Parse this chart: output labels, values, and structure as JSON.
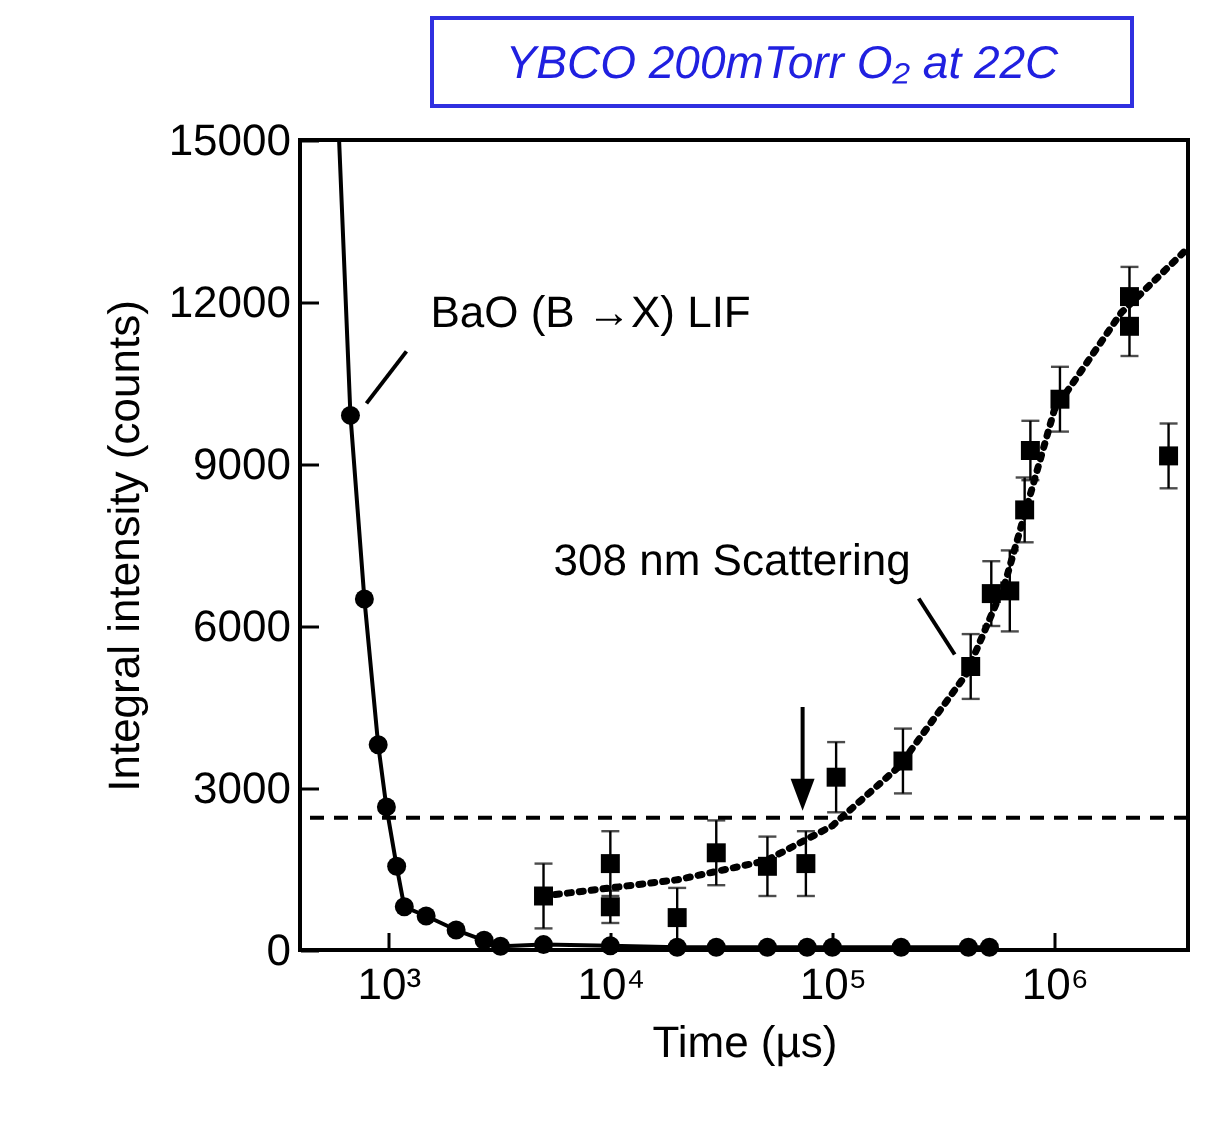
{
  "chart_data": {
    "type": "scatter",
    "title": "YBCO 200mTorr O₂ at 22C",
    "xlabel": "Time (µs)",
    "ylabel": "Integral intensity (counts)",
    "log": "x",
    "xlim": [
      400,
      4000000
    ],
    "xticks": [
      {
        "value": 1000,
        "label": "10³"
      },
      {
        "value": 10000,
        "label": "10⁴"
      },
      {
        "value": 100000,
        "label": "10⁵"
      },
      {
        "value": 1000000,
        "label": "10⁶"
      }
    ],
    "ylim": [
      0,
      15000
    ],
    "yticks": [
      0,
      3000,
      6000,
      9000,
      12000,
      15000
    ],
    "series": [
      {
        "type": "line",
        "color": "#000000",
        "line_style": "solid",
        "marker": "none",
        "x": [
          600,
          675,
          780,
          900,
          980,
          1090,
          1180,
          1480,
          2020,
          2700,
          3200,
          5000,
          10000,
          20000,
          30000,
          51000,
          77000,
          100000,
          204000,
          410000,
          510000
        ],
        "values": [
          15000,
          9900,
          6500,
          3800,
          2650,
          1550,
          800,
          630,
          370,
          180,
          70,
          100,
          80,
          50,
          50,
          50,
          50,
          50,
          50,
          50,
          50
        ]
      },
      {
        "type": "line",
        "color": "#000000",
        "line_style": "dotted",
        "marker": "none",
        "x": [
          5000,
          10000,
          20000,
          50000,
          100000,
          200000,
          400000,
          600000,
          800000,
          1000000,
          2000000,
          4000000
        ],
        "values": [
          1000,
          1150,
          1300,
          1650,
          2300,
          3400,
          5100,
          6800,
          8600,
          10000,
          11800,
          13000
        ]
      },
      {
        "color": "#000000",
        "marker": "circle",
        "x": [
          675,
          780,
          900,
          980,
          1090,
          1180,
          1480,
          2020,
          2700,
          3200,
          5000,
          10000,
          20000,
          30000,
          51000,
          77000,
          100000,
          204000,
          410000,
          510000
        ],
        "values": [
          9900,
          6500,
          3800,
          2650,
          1550,
          800,
          630,
          370,
          180,
          70,
          100,
          80,
          50,
          50,
          50,
          50,
          50,
          50,
          50,
          50
        ]
      },
      {
        "color": "#000000",
        "marker": "square",
        "x": [
          5000,
          10000,
          10000,
          20000,
          30000,
          51000,
          76000,
          104000,
          208000,
          420000,
          520000,
          630000,
          735000,
          780000,
          1060000,
          2180000,
          2180000,
          3270000
        ],
        "values": [
          1000,
          1600,
          800,
          600,
          1800,
          1550,
          1600,
          3200,
          3500,
          5250,
          6600,
          6650,
          8150,
          9250,
          10200,
          11550,
          12100,
          9150
        ],
        "errors": [
          600,
          600,
          300,
          550,
          600,
          550,
          600,
          650,
          600,
          600,
          600,
          750,
          600,
          550,
          600,
          550,
          550,
          600
        ]
      }
    ],
    "ref_lines": [
      {
        "axis": "y",
        "value": 2450,
        "color": "#000000",
        "line_style": "dashed"
      }
    ],
    "annotations": [
      {
        "text": "BaO (B →X) LIF",
        "x": 675,
        "y": 9900
      },
      {
        "text": "308 nm Scattering",
        "x": 420000,
        "y": 5250
      }
    ]
  }
}
